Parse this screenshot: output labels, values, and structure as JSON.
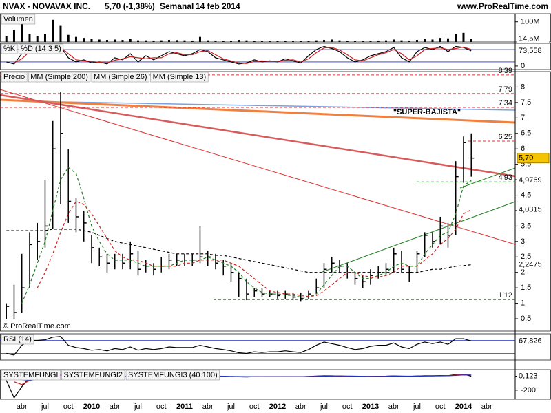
{
  "header": {
    "symbol": "NVAX - NOVAVAX INC.",
    "quote": "5,70 (-1,38%)",
    "period": "Semanal",
    "date": "14 feb 2014",
    "site": "www.ProRealTime.com",
    "copyright": "© ProRealTime.com"
  },
  "chart_data": [
    {
      "type": "bar",
      "ylim": [
        0,
        140
      ],
      "yticks": [
        {
          "value": 100,
          "label": "100M"
        }
      ],
      "series": [
        {
          "name": "Volumen",
          "color": "#000000",
          "values": [
            30,
            60,
            90,
            40,
            30,
            40,
            110,
            80,
            35,
            25,
            20,
            15,
            12,
            10,
            12,
            10,
            15,
            8,
            8,
            7,
            8,
            10,
            9,
            8,
            7,
            25,
            8,
            7,
            6,
            6,
            10,
            8,
            6,
            5,
            5,
            5,
            4,
            4,
            4,
            5,
            8,
            10,
            12,
            8,
            6,
            5,
            5,
            6,
            7,
            8,
            12,
            8,
            7,
            10,
            14,
            12,
            20,
            18,
            40,
            45,
            14.5,
            null,
            null
          ]
        }
      ],
      "tags": [
        {
          "value": 14.5,
          "label": "14,5M",
          "color": "#000000",
          "bg": "#ffffff"
        }
      ]
    },
    {
      "type": "line",
      "ylim": [
        -17,
        110
      ],
      "yticks": [
        0
      ],
      "hlines": [
        20,
        80
      ],
      "series": [
        {
          "name": "%K",
          "color": "#000000",
          "values": [
            20,
            10,
            60,
            85,
            80,
            75,
            90,
            95,
            40,
            20,
            30,
            15,
            20,
            10,
            40,
            30,
            60,
            20,
            50,
            30,
            50,
            70,
            60,
            50,
            60,
            80,
            70,
            40,
            30,
            20,
            10,
            15,
            30,
            20,
            25,
            20,
            35,
            25,
            15,
            50,
            80,
            95,
            85,
            70,
            40,
            20,
            30,
            50,
            60,
            70,
            90,
            40,
            20,
            70,
            90,
            80,
            95,
            70,
            95,
            90,
            73.558,
            null,
            null
          ]
        },
        {
          "name": "%D (14 3 5)",
          "color": "#d02020",
          "values": [
            null,
            15,
            35,
            70,
            82,
            78,
            85,
            92,
            60,
            30,
            25,
            22,
            18,
            15,
            28,
            35,
            45,
            40,
            35,
            40,
            40,
            60,
            65,
            55,
            55,
            70,
            75,
            55,
            35,
            25,
            15,
            12,
            22,
            25,
            22,
            22,
            28,
            30,
            20,
            35,
            65,
            88,
            90,
            78,
            55,
            30,
            25,
            40,
            55,
            65,
            80,
            60,
            30,
            50,
            80,
            85,
            88,
            80,
            85,
            92,
            80,
            null,
            null
          ]
        }
      ],
      "tags": [
        {
          "value": 73.558,
          "label": "73,558",
          "color": "#000000",
          "bg": "#ffffff"
        }
      ]
    },
    {
      "type": "ohlc",
      "ylim": [
        0.1,
        8.5
      ],
      "yticks": [
        {
          "value": 0.5,
          "label": "0,5"
        },
        1,
        {
          "value": 1.5,
          "label": "1,5"
        },
        2,
        {
          "value": 2.5,
          "label": "2,5"
        },
        3,
        {
          "value": 3.5,
          "label": "3,5"
        },
        4,
        {
          "value": 4.5,
          "label": "4,5"
        },
        5,
        {
          "value": 5.5,
          "label": "5,5"
        },
        6,
        {
          "value": 6.5,
          "label": "6,5"
        },
        7,
        {
          "value": 7.5,
          "label": "7,5"
        },
        8
      ],
      "series": [
        {
          "name": "Precio",
          "color": "#000000",
          "values": [
            0.9,
            0.7,
            1.5,
            2.9,
            3.0,
            3.5,
            6.0,
            6.5,
            4.3,
            3.8,
            3.6,
            2.8,
            2.5,
            2.3,
            2.4,
            2.3,
            2.6,
            2.1,
            2.2,
            2.1,
            2.2,
            2.4,
            2.4,
            2.4,
            2.4,
            2.5,
            2.5,
            2.3,
            2.2,
            2.0,
            1.8,
            1.3,
            1.4,
            1.3,
            1.3,
            1.25,
            1.3,
            1.2,
            1.15,
            1.3,
            1.5,
            2.1,
            2.3,
            2.2,
            2.0,
            1.8,
            1.7,
            1.9,
            2.0,
            2.1,
            2.6,
            2.1,
            2.0,
            2.6,
            3.2,
            3.0,
            3.5,
            3.2,
            5.1,
            6.2,
            5.7,
            null,
            null
          ],
          "high": [
            1.0,
            1.6,
            2.6,
            3.3,
            3.6,
            5.0,
            6.9,
            7.85,
            6.0,
            4.4,
            4.0,
            3.2,
            2.8,
            2.6,
            2.6,
            2.6,
            3.0,
            2.7,
            2.4,
            2.3,
            2.5,
            2.6,
            2.6,
            2.6,
            2.6,
            3.5,
            2.7,
            2.6,
            2.4,
            2.3,
            2.0,
            1.8,
            1.5,
            1.5,
            1.4,
            1.4,
            1.4,
            1.35,
            1.35,
            1.4,
            1.8,
            2.3,
            2.5,
            2.4,
            2.3,
            2.0,
            1.9,
            2.1,
            2.2,
            2.3,
            2.8,
            2.7,
            2.2,
            2.7,
            3.3,
            3.3,
            3.8,
            3.6,
            5.6,
            6.4,
            6.5,
            null,
            null
          ],
          "low": [
            0.5,
            0.5,
            0.7,
            1.5,
            2.4,
            2.8,
            3.4,
            4.2,
            3.6,
            3.3,
            3.0,
            2.3,
            2.2,
            2.0,
            2.1,
            2.1,
            2.1,
            1.9,
            2.0,
            1.9,
            2.0,
            2.1,
            2.2,
            2.2,
            2.2,
            2.3,
            2.2,
            2.1,
            1.9,
            1.7,
            1.2,
            1.1,
            1.2,
            1.2,
            1.2,
            1.15,
            1.15,
            1.1,
            1.05,
            1.15,
            1.3,
            1.5,
            2.0,
            2.0,
            1.8,
            1.6,
            1.5,
            1.6,
            1.8,
            1.9,
            2.0,
            2.0,
            1.7,
            2.0,
            2.5,
            2.8,
            2.9,
            2.8,
            3.2,
            4.9,
            5.1,
            null,
            null
          ]
        },
        {
          "name": "MM (Simple 200)",
          "color": "#000000",
          "dashed": true,
          "values": [
            3.35,
            3.35,
            3.35,
            3.35,
            3.35,
            3.35,
            3.4,
            3.4,
            3.4,
            3.4,
            3.35,
            3.3,
            3.2,
            3.1,
            3.0,
            2.95,
            2.9,
            2.85,
            2.8,
            2.75,
            2.7,
            2.65,
            2.6,
            2.6,
            2.6,
            2.6,
            2.6,
            2.55,
            2.55,
            2.5,
            2.45,
            2.4,
            2.35,
            2.3,
            2.25,
            2.2,
            2.15,
            2.1,
            2.05,
            2.0,
            2.0,
            2.0,
            2.0,
            2.0,
            2.0,
            2.0,
            2.0,
            2.0,
            2.0,
            2.0,
            2.0,
            2.0,
            2.0,
            2.0,
            2.05,
            2.1,
            2.1,
            2.15,
            2.2,
            2.22,
            2.2475,
            null,
            null
          ]
        },
        {
          "name": "MM (Simple 26)",
          "color": "#d02020",
          "dashed": true,
          "values": [
            null,
            null,
            null,
            null,
            1.5,
            2.0,
            2.6,
            3.3,
            3.9,
            4.3,
            4.2,
            3.9,
            3.5,
            3.1,
            2.7,
            2.5,
            2.4,
            2.4,
            2.3,
            2.2,
            2.2,
            2.2,
            2.2,
            2.3,
            2.3,
            2.4,
            2.4,
            2.4,
            2.4,
            2.3,
            2.2,
            2.0,
            1.8,
            1.6,
            1.4,
            1.35,
            1.3,
            1.3,
            1.25,
            1.22,
            1.25,
            1.4,
            1.6,
            1.8,
            2.0,
            2.0,
            1.9,
            1.85,
            1.85,
            1.9,
            2.0,
            2.2,
            2.2,
            2.2,
            2.4,
            2.6,
            2.9,
            3.1,
            3.4,
            3.9,
            4.0315,
            null,
            null
          ]
        },
        {
          "name": "MM (Simple 13)",
          "color": "#208020",
          "dashed": true,
          "values": [
            null,
            null,
            1.0,
            1.6,
            2.3,
            3.0,
            4.0,
            5.0,
            5.4,
            5.2,
            4.4,
            3.5,
            3.0,
            2.6,
            2.4,
            2.4,
            2.4,
            2.3,
            2.2,
            2.2,
            2.2,
            2.2,
            2.3,
            2.4,
            2.4,
            2.4,
            2.5,
            2.4,
            2.3,
            2.2,
            2.0,
            1.7,
            1.5,
            1.35,
            1.3,
            1.3,
            1.27,
            1.25,
            1.2,
            1.2,
            1.3,
            1.6,
            1.9,
            2.2,
            2.2,
            2.0,
            1.8,
            1.8,
            1.9,
            2.0,
            2.2,
            2.3,
            2.2,
            2.2,
            2.6,
            2.9,
            3.2,
            3.3,
            3.9,
            4.8,
            4.9769,
            null,
            null
          ]
        }
      ],
      "levels": [
        {
          "value": 8.39,
          "label": "8'39",
          "color": "#e03030"
        },
        {
          "value": 7.79,
          "label": "7'79",
          "color": "#e03030"
        },
        {
          "value": 7.34,
          "label": "7'34",
          "color": "#e03030"
        },
        {
          "value": 6.25,
          "label": "6'25",
          "color": "#e03030"
        },
        {
          "value": 4.93,
          "label": "4'93",
          "color": "#208020"
        },
        {
          "value": 1.12,
          "label": "1'12",
          "color": "#208020"
        }
      ],
      "annotation": {
        "text": "\"SUPER-BAJISTA\"",
        "color": "#f07030"
      },
      "tags": [
        {
          "value": 5.7,
          "label": "5,70",
          "color": "#000000",
          "bg": "#f5c400"
        },
        {
          "value": 4.9769,
          "label": "4,9769",
          "color": "#007000",
          "bg": "#ffffff"
        },
        {
          "value": 4.0315,
          "label": "4,0315",
          "color": "#d00000",
          "bg": "#ffffff"
        },
        {
          "value": 2.2475,
          "label": "2,2475",
          "color": "#000000",
          "bg": "#ffffff"
        }
      ]
    },
    {
      "type": "line",
      "ylim": [
        10,
        90
      ],
      "hlines": [
        30,
        70
      ],
      "series": [
        {
          "name": "RSI (14)",
          "color": "#000000",
          "values": [
            30,
            25,
            55,
            70,
            70,
            72,
            80,
            82,
            55,
            48,
            45,
            40,
            42,
            38,
            45,
            42,
            50,
            40,
            45,
            42,
            45,
            50,
            48,
            48,
            48,
            55,
            50,
            45,
            42,
            38,
            32,
            30,
            35,
            33,
            35,
            35,
            38,
            35,
            33,
            42,
            55,
            65,
            60,
            55,
            48,
            42,
            45,
            52,
            55,
            55,
            62,
            50,
            45,
            58,
            65,
            60,
            65,
            58,
            75,
            75,
            67.826,
            null,
            null
          ]
        }
      ],
      "tags": [
        {
          "value": 67.826,
          "label": "67,826",
          "color": "#000000",
          "bg": "#ffffff"
        }
      ]
    },
    {
      "type": "line",
      "ylim": [
        -330,
        95
      ],
      "yticks": [
        0,
        -200
      ],
      "categories": [
        null,
        null,
        "abr",
        null,
        null,
        "jul",
        null,
        null,
        "oct",
        null,
        null,
        "2010",
        null,
        null,
        "abr",
        null,
        null,
        "jul",
        null,
        null,
        "oct",
        null,
        null,
        "2011",
        null,
        null,
        "abr",
        null,
        null,
        "jul",
        null,
        null,
        "oct",
        null,
        null,
        "2012",
        null,
        null,
        "abr",
        null,
        null,
        "jul",
        null,
        null,
        "oct",
        null,
        null,
        "2013",
        null,
        null,
        "abr",
        null,
        null,
        "jul",
        null,
        null,
        "oct",
        null,
        null,
        "2014",
        null,
        null,
        "abr"
      ],
      "series": [
        {
          "name": "SYSTEMFUNGI",
          "color": "#000000",
          "values": [
            -60,
            -310,
            -150,
            -20,
            5,
            15,
            40,
            30,
            -10,
            -20,
            -15,
            -10,
            -5,
            -8,
            -3,
            -5,
            0,
            -6,
            -3,
            -4,
            -2,
            0,
            -1,
            -1,
            0,
            5,
            2,
            -3,
            -4,
            -6,
            -8,
            -10,
            -6,
            -7,
            -6,
            -6,
            -5,
            -6,
            -6,
            -3,
            2,
            8,
            6,
            3,
            -2,
            -4,
            -4,
            -2,
            0,
            1,
            5,
            0,
            -3,
            4,
            8,
            6,
            10,
            7,
            25,
            30,
            0.123,
            null,
            null
          ]
        },
        {
          "name": "SYSTEMFUNGI2",
          "color": "#e02020",
          "values": [
            null,
            -80,
            -120,
            -60,
            -10,
            10,
            25,
            30,
            10,
            -10,
            -12,
            -12,
            -8,
            -7,
            -5,
            -4,
            -2,
            -4,
            -4,
            -3,
            -3,
            -1,
            -1,
            -1,
            0,
            3,
            3,
            0,
            -3,
            -5,
            -7,
            -8,
            -7,
            -7,
            -6,
            -6,
            -6,
            -6,
            -6,
            -4,
            0,
            5,
            6,
            4,
            0,
            -3,
            -4,
            -3,
            -1,
            0,
            3,
            2,
            -1,
            2,
            6,
            7,
            8,
            8,
            18,
            25,
            15,
            null,
            null
          ]
        },
        {
          "name": "SYSTEMFUNGI3 (40 100)",
          "color": "#2030c0",
          "values": [
            null,
            null,
            -50,
            -60,
            -40,
            -15,
            5,
            15,
            15,
            5,
            -5,
            -8,
            -8,
            -7,
            -6,
            -5,
            -4,
            -3,
            -3,
            -3,
            -3,
            -2,
            -2,
            -1,
            -1,
            1,
            2,
            1,
            0,
            -2,
            -4,
            -5,
            -6,
            -6,
            -6,
            -6,
            -6,
            -6,
            -6,
            -5,
            -3,
            1,
            3,
            4,
            3,
            1,
            -1,
            -2,
            -2,
            -1,
            1,
            1,
            1,
            1,
            3,
            5,
            6,
            7,
            12,
            18,
            17,
            null,
            null
          ]
        }
      ],
      "tags": [
        {
          "value": 0.123,
          "label": "0,123",
          "color": "#000000",
          "bg": "#ffffff"
        }
      ]
    }
  ]
}
